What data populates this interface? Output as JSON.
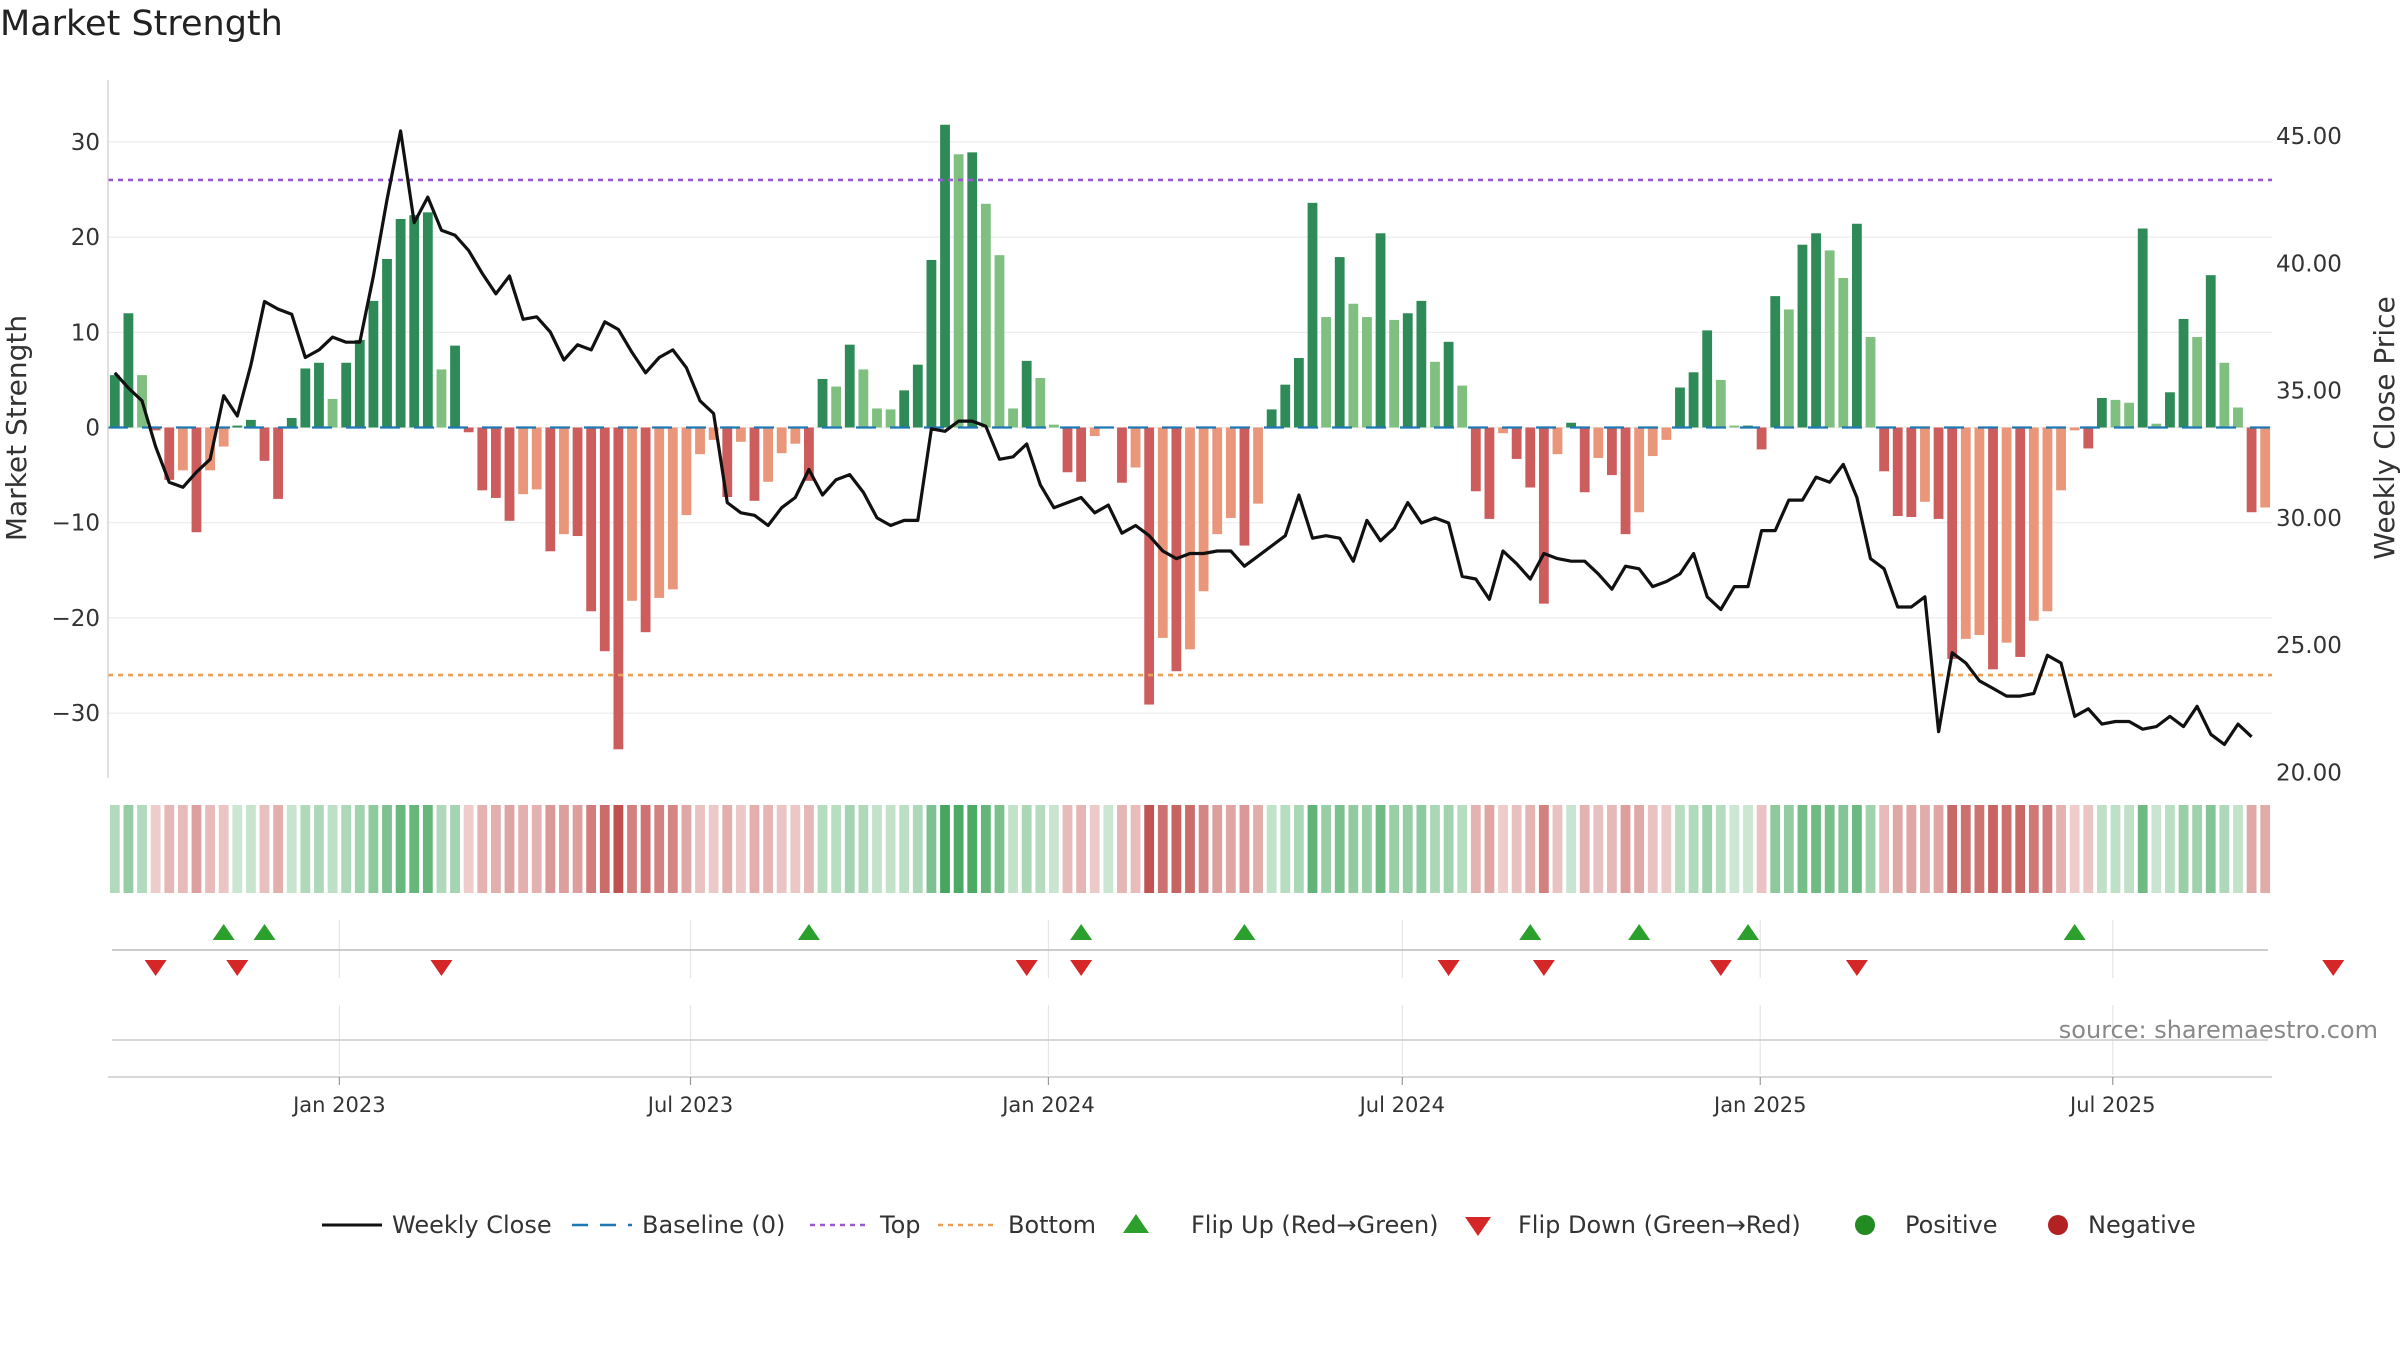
{
  "chart_data": {
    "type": "bar",
    "title": "Market Strength",
    "ylabel_left": "Market Strength",
    "ylabel_right": "Weekly Close Price",
    "source": "source: sharemaestro.com",
    "ylim_left": [
      -36.5,
      36.5
    ],
    "ylim_right": [
      19.9,
      47.2
    ],
    "left_ticks": [
      30,
      20,
      10,
      0,
      -10,
      -20,
      -30
    ],
    "left_tick_labels": [
      "30",
      "20",
      "10",
      "0",
      "−10",
      "−20",
      "−30"
    ],
    "right_ticks": [
      45,
      40,
      35,
      30,
      25,
      20
    ],
    "right_tick_labels": [
      "45.00",
      "40.00",
      "35.00",
      "30.00",
      "25.00",
      "20.00"
    ],
    "x_ticks": [
      {
        "label": "Jan 2023",
        "week": 17.0
      },
      {
        "label": "Jul 2023",
        "week": 42.8
      },
      {
        "label": "Jan 2024",
        "week": 69.1
      },
      {
        "label": "Jul 2024",
        "week": 95.1
      },
      {
        "label": "Jan 2025",
        "week": 121.4
      },
      {
        "label": "Jul 2025",
        "week": 147.3
      }
    ],
    "top_line": 26,
    "bottom_line": -26,
    "grid": true,
    "colors": {
      "pos_strong": "#2e8b57",
      "pos_light": "#7fbf7f",
      "neg_strong": "#cd5c5c",
      "neg_light": "#e9967a",
      "price_line": "#111111",
      "baseline": "#1f77b4",
      "top": "#9b59d0",
      "bottom": "#e8a05a",
      "flip_up": "#2ca02c",
      "flip_down": "#d62728",
      "positive": "#228b22",
      "negative": "#b22222"
    },
    "strength": [
      5.5,
      12,
      5.5,
      -0.3,
      -5.5,
      -4.5,
      -11,
      -4.5,
      -2,
      0.2,
      0.8,
      -3.5,
      -7.5,
      1,
      6.2,
      6.8,
      3,
      6.8,
      9.2,
      13.3,
      17.7,
      21.9,
      22.3,
      22.6,
      6.1,
      8.6,
      -0.5,
      -6.6,
      -7.4,
      -9.8,
      -7,
      -6.5,
      -13,
      -11.2,
      -11.4,
      -19.3,
      -23.5,
      -33.8,
      -18.2,
      -21.5,
      -17.9,
      -17,
      -9.2,
      -2.8,
      -1.3,
      -7.3,
      -1.5,
      -7.7,
      -5.7,
      -2.7,
      -1.7,
      -5.6,
      5.1,
      4.3,
      8.7,
      6.1,
      2,
      1.9,
      3.9,
      6.6,
      17.6,
      31.8,
      28.7,
      28.9,
      23.5,
      18.1,
      2,
      7,
      5.2,
      0.3,
      -4.7,
      -5.7,
      -0.9,
      0.1,
      -5.8,
      -4.2,
      -29.1,
      -22.1,
      -25.6,
      -23.3,
      -17.2,
      -11.2,
      -9.5,
      -12.4,
      -8,
      1.9,
      4.5,
      7.3,
      23.6,
      11.6,
      17.9,
      13,
      11.6,
      20.4,
      11.3,
      12,
      13.3,
      6.9,
      9,
      4.4,
      -6.7,
      -9.6,
      -0.6,
      -3.3,
      -6.3,
      -18.5,
      -2.8,
      0.5,
      -6.8,
      -3.2,
      -5,
      -11.2,
      -8.9,
      -3,
      -1.3,
      4.2,
      5.8,
      10.2,
      5,
      0.2,
      0.2,
      -2.3,
      13.8,
      12.4,
      19.2,
      20.4,
      18.6,
      15.7,
      21.4,
      9.5,
      -4.6,
      -9.3,
      -9.4,
      -7.8,
      -9.6,
      -24.3,
      -22.2,
      -21.8,
      -25.4,
      -22.6,
      -24.1,
      -20.3,
      -19.3,
      -6.6,
      -0.3,
      -2.2,
      3.1,
      2.9,
      2.6,
      20.9,
      0.4,
      3.7,
      11.4,
      9.5,
      16,
      6.8,
      2.1,
      -8.9,
      -8.4
    ],
    "close": [
      35.7,
      35.1,
      34.6,
      32.8,
      31.4,
      31.2,
      31.8,
      32.3,
      34.8,
      34,
      36,
      38.5,
      38.2,
      38,
      36.3,
      36.6,
      37.1,
      36.9,
      36.9,
      39.5,
      42.5,
      45.2,
      41.6,
      42.6,
      41.3,
      41.1,
      40.5,
      39.6,
      38.8,
      39.5,
      37.8,
      37.9,
      37.3,
      36.2,
      36.8,
      36.6,
      37.7,
      37.4,
      36.5,
      35.7,
      36.3,
      36.6,
      35.9,
      34.6,
      34.1,
      30.6,
      30.2,
      30.1,
      29.7,
      30.4,
      30.8,
      31.9,
      30.9,
      31.5,
      31.7,
      31,
      30,
      29.7,
      29.9,
      29.9,
      33.5,
      33.4,
      33.8,
      33.8,
      33.6,
      32.3,
      32.4,
      32.9,
      31.3,
      30.4,
      30.6,
      30.8,
      30.2,
      30.5,
      29.4,
      29.7,
      29.3,
      28.7,
      28.4,
      28.6,
      28.6,
      28.7,
      28.7,
      28.1,
      28.5,
      28.9,
      29.3,
      30.9,
      29.2,
      29.3,
      29.2,
      28.3,
      29.9,
      29.1,
      29.6,
      30.6,
      29.8,
      30,
      29.8,
      27.7,
      27.6,
      26.8,
      28.7,
      28.2,
      27.6,
      28.6,
      28.4,
      28.3,
      28.3,
      27.8,
      27.2,
      28.1,
      28,
      27.3,
      27.5,
      27.8,
      28.6,
      26.9,
      26.4,
      27.3,
      27.3,
      29.5,
      29.5,
      30.7,
      30.7,
      31.6,
      31.4,
      32.1,
      30.8,
      28.4,
      28,
      26.5,
      26.5,
      26.9,
      21.6,
      24.7,
      24.3,
      23.6,
      23.3,
      23,
      23,
      23.1,
      24.6,
      24.3,
      22.2,
      22.5,
      21.9,
      22,
      22,
      21.7,
      21.8,
      22.2,
      21.8,
      22.6,
      21.5,
      21.1,
      21.9,
      21.4
    ],
    "flip_up": [
      8,
      11,
      51,
      71,
      83,
      104,
      112,
      120,
      144
    ],
    "flip_down": [
      3,
      9,
      24,
      67,
      71,
      98,
      105,
      118,
      128,
      163
    ],
    "legend": [
      {
        "label": "Weekly Close",
        "kind": "line"
      },
      {
        "label": "Baseline (0)",
        "kind": "dash"
      },
      {
        "label": "Top",
        "kind": "dot-top"
      },
      {
        "label": "Bottom",
        "kind": "dot-bottom"
      },
      {
        "label": "Flip Up (Red→Green)",
        "kind": "tri-up"
      },
      {
        "label": "Flip Down (Green→Red)",
        "kind": "tri-down"
      },
      {
        "label": "Positive",
        "kind": "dot-pos"
      },
      {
        "label": "Negative",
        "kind": "dot-neg"
      }
    ]
  }
}
